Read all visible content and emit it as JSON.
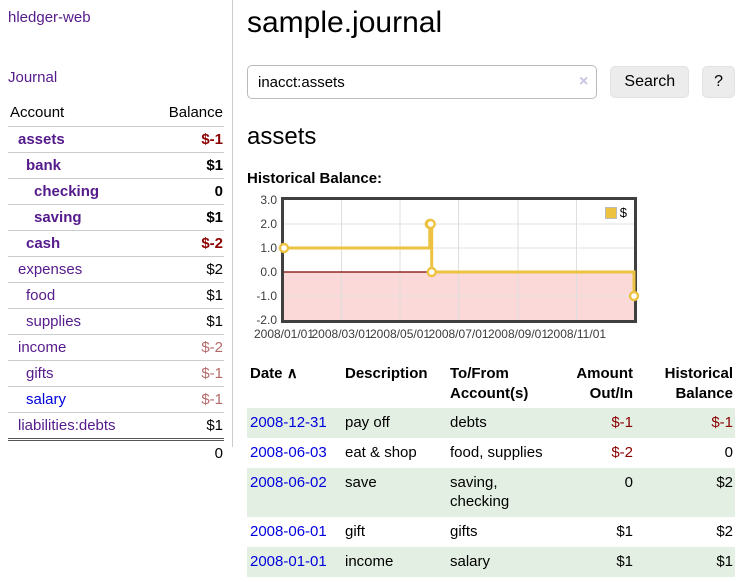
{
  "colors": {
    "link_purple": "#551a8b",
    "link_blue": "#0000dd",
    "negative_dark": "#8b0000",
    "negative_soft": "#b56a6a",
    "row_green": "#e3efe3",
    "series_yellow": "#edc240"
  },
  "sidebar": {
    "app_title": "hledger-web",
    "journal_link": "Journal",
    "accounts": {
      "header_account": "Account",
      "header_balance": "Balance",
      "rows": [
        {
          "name": "assets",
          "balance": "$-1",
          "indent": 1,
          "bold": true,
          "name_color": "purple",
          "balance_color": "negative_dark"
        },
        {
          "name": "bank",
          "balance": "$1",
          "indent": 2,
          "bold": true,
          "name_color": "purple",
          "balance_color": "black"
        },
        {
          "name": "checking",
          "balance": "0",
          "indent": 3,
          "bold": true,
          "name_color": "purple",
          "balance_color": "black"
        },
        {
          "name": "saving",
          "balance": "$1",
          "indent": 3,
          "bold": true,
          "name_color": "purple",
          "balance_color": "black"
        },
        {
          "name": "cash",
          "balance": "$-2",
          "indent": 2,
          "bold": true,
          "name_color": "purple",
          "balance_color": "negative_dark"
        },
        {
          "name": "expenses",
          "balance": "$2",
          "indent": 1,
          "bold": false,
          "name_color": "purple",
          "balance_color": "black"
        },
        {
          "name": "food",
          "balance": "$1",
          "indent": 2,
          "bold": false,
          "name_color": "purple",
          "balance_color": "black"
        },
        {
          "name": "supplies",
          "balance": "$1",
          "indent": 2,
          "bold": false,
          "name_color": "purple",
          "balance_color": "black"
        },
        {
          "name": "income",
          "balance": "$-2",
          "indent": 1,
          "bold": false,
          "name_color": "purple",
          "balance_color": "negative_soft"
        },
        {
          "name": "gifts",
          "balance": "$-1",
          "indent": 2,
          "bold": false,
          "name_color": "purple",
          "balance_color": "negative_soft"
        },
        {
          "name": "salary",
          "balance": "$-1",
          "indent": 2,
          "bold": false,
          "name_color": "blue",
          "balance_color": "negative_soft"
        },
        {
          "name": "liabilities:debts",
          "balance": "$1",
          "indent": 1,
          "bold": false,
          "name_color": "purple",
          "balance_color": "black"
        }
      ],
      "total": "0"
    }
  },
  "main": {
    "title": "sample.journal",
    "search": {
      "value": "inacct:assets",
      "clear_icon": "×",
      "button_label": "Search",
      "help_label": "?"
    },
    "account_heading": "assets",
    "chart_heading": "Historical Balance:"
  },
  "chart_data": {
    "type": "line",
    "step": true,
    "title": "Historical Balance:",
    "series": [
      {
        "name": "$",
        "color": "#edc240",
        "points": [
          [
            "2008-01-01",
            1
          ],
          [
            "2008-06-01",
            2
          ],
          [
            "2008-06-02",
            2
          ],
          [
            "2008-06-03",
            0
          ],
          [
            "2008-12-31",
            -1
          ]
        ]
      }
    ],
    "x_range": [
      "2008-01-01",
      "2008-12-31"
    ],
    "x_ticks": [
      {
        "date": "2008-01-01",
        "label": "2008/01/01"
      },
      {
        "date": "2008-03-01",
        "label": "2008/03/01"
      },
      {
        "date": "2008-05-01",
        "label": "2008/05/01"
      },
      {
        "date": "2008-07-01",
        "label": "2008/07/01"
      },
      {
        "date": "2008-09-01",
        "label": "2008/09/01"
      },
      {
        "date": "2008-11-01",
        "label": "2008/11/01"
      }
    ],
    "y_range": [
      -2,
      3
    ],
    "y_ticks": [
      {
        "value": 3,
        "label": "3.0"
      },
      {
        "value": 2,
        "label": "2.0"
      },
      {
        "value": 1,
        "label": "1.0"
      },
      {
        "value": 0,
        "label": "0.0"
      },
      {
        "value": -1,
        "label": "-1.0"
      },
      {
        "value": -2,
        "label": "-2.0"
      }
    ],
    "legend": {
      "label": "$",
      "position": "top-right"
    },
    "negative_region_fill": "#fbd9d9",
    "zero_line_color": "#800000",
    "grid": true
  },
  "register": {
    "headers": {
      "date": "Date",
      "sort_icon": "∧",
      "description": "Description",
      "accounts": "To/From Account(s)",
      "amount": "Amount Out/In",
      "balance": "Historical Balance"
    },
    "rows": [
      {
        "date": "2008-12-31",
        "description": "pay off",
        "accounts": "debts",
        "amount": "$-1",
        "amount_negative": true,
        "balance": "$-1",
        "balance_negative": true
      },
      {
        "date": "2008-06-03",
        "description": "eat & shop",
        "accounts": "food, supplies",
        "amount": "$-2",
        "amount_negative": true,
        "balance": "0",
        "balance_negative": false
      },
      {
        "date": "2008-06-02",
        "description": "save",
        "accounts": "saving, checking",
        "amount": "0",
        "amount_negative": false,
        "balance": "$2",
        "balance_negative": false
      },
      {
        "date": "2008-06-01",
        "description": "gift",
        "accounts": "gifts",
        "amount": "$1",
        "amount_negative": false,
        "balance": "$2",
        "balance_negative": false
      },
      {
        "date": "2008-01-01",
        "description": "income",
        "accounts": "salary",
        "amount": "$1",
        "amount_negative": false,
        "balance": "$1",
        "balance_negative": false
      }
    ]
  }
}
